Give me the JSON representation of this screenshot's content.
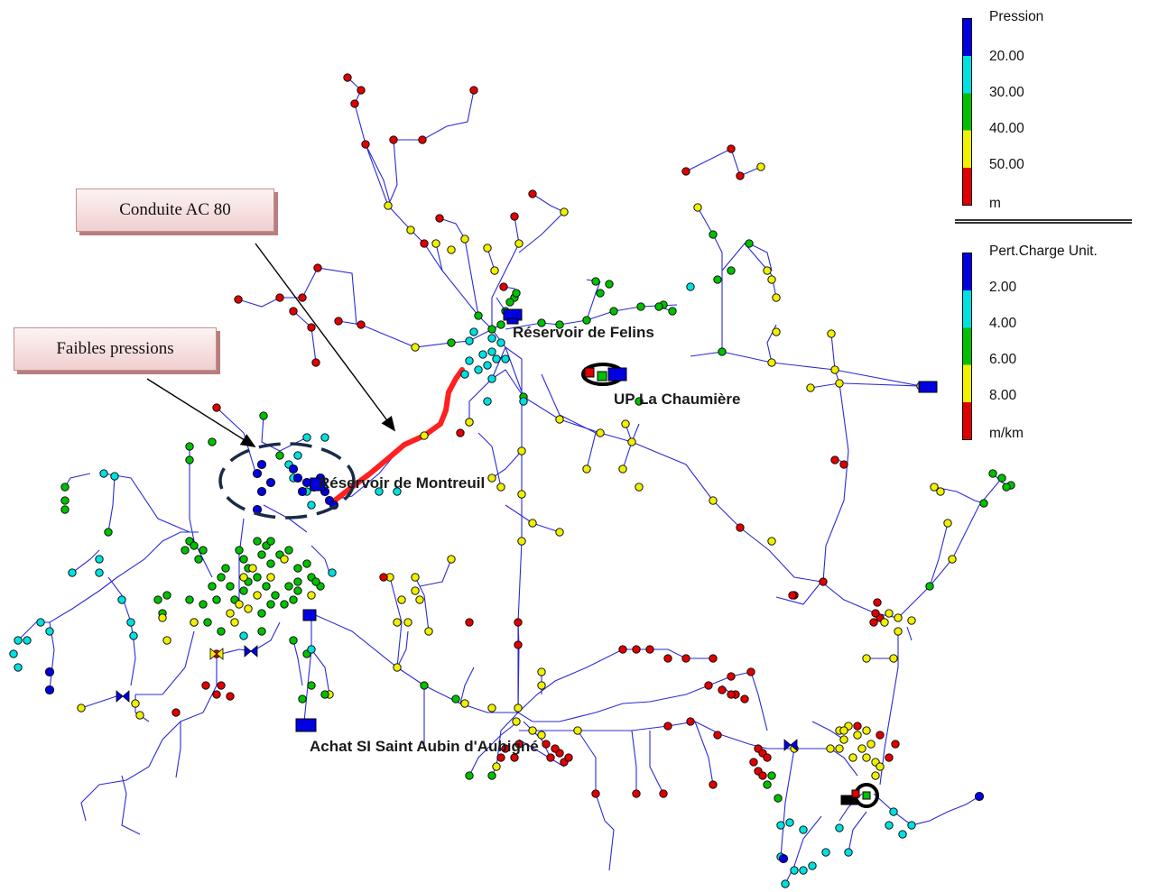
{
  "labels": {
    "reservoir_felins": "Réservoir de Felins",
    "up_chaumiere": "UP La Chaumière",
    "reservoir_montreuil": "Réservoir de Montreuil",
    "achat_si": "Achat SI Saint Aubin d'Aubigné"
  },
  "callouts": {
    "conduite": "Conduite AC 80",
    "faibles": "Faibles pressions"
  },
  "legend_pression": {
    "title": "Pression",
    "ticks": [
      "20.00",
      "30.00",
      "40.00",
      "50.00"
    ],
    "unit": "m"
  },
  "legend_perte": {
    "title": "Pert.Charge Unit.",
    "ticks": [
      "2.00",
      "4.00",
      "6.00",
      "8.00"
    ],
    "unit": "m/km"
  },
  "colors": {
    "blue": "#0000e0",
    "cyan": "#00e0e0",
    "green": "#00c000",
    "yellow": "#f0f000",
    "red": "#e00000",
    "pipe": "#2b2bd6"
  }
}
